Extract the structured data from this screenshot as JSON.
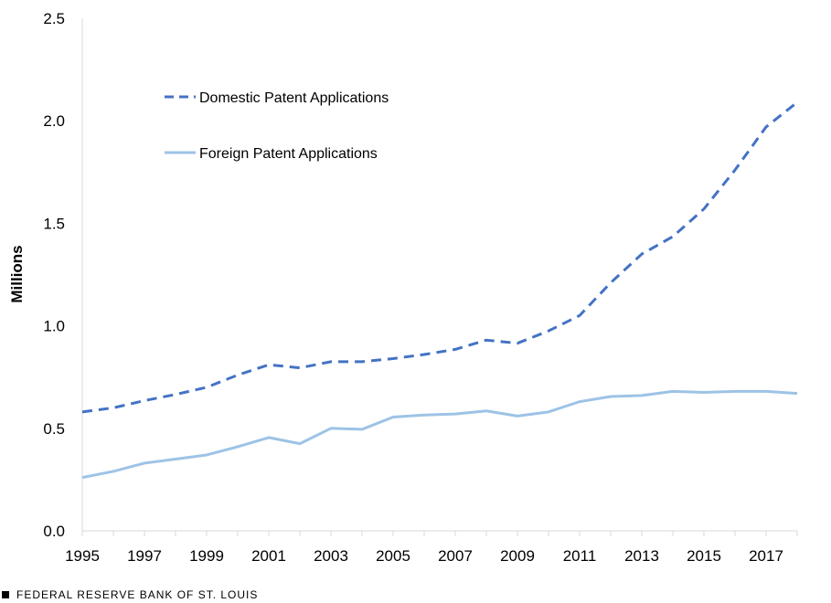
{
  "chart_data": {
    "type": "line",
    "title": "",
    "xlabel": "",
    "ylabel": "Millions",
    "ylim": [
      0,
      2.5
    ],
    "xlim": [
      1995,
      2018
    ],
    "yticks": [
      "0.0",
      "0.5",
      "1.0",
      "1.5",
      "2.0",
      "2.5"
    ],
    "xticks": [
      "1995",
      "1997",
      "1999",
      "2001",
      "2003",
      "2005",
      "2007",
      "2009",
      "2011",
      "2013",
      "2015",
      "2017"
    ],
    "grid": false,
    "legend_position": "top-left",
    "x": [
      1995,
      1996,
      1997,
      1998,
      1999,
      2000,
      2001,
      2002,
      2003,
      2004,
      2005,
      2006,
      2007,
      2008,
      2009,
      2010,
      2011,
      2012,
      2013,
      2014,
      2015,
      2016,
      2017,
      2018
    ],
    "series": [
      {
        "name": "Domestic Patent Applications",
        "style": "dashed",
        "color": "#4472c4",
        "values": [
          0.58,
          0.6,
          0.635,
          0.665,
          0.7,
          0.76,
          0.81,
          0.795,
          0.825,
          0.825,
          0.84,
          0.86,
          0.885,
          0.93,
          0.915,
          0.975,
          1.05,
          1.21,
          1.35,
          1.435,
          1.57,
          1.76,
          1.97,
          2.09
        ]
      },
      {
        "name": "Foreign Patent Applications",
        "style": "solid",
        "color": "#9dc3e6",
        "values": [
          0.26,
          0.29,
          0.33,
          0.35,
          0.37,
          0.41,
          0.455,
          0.425,
          0.5,
          0.495,
          0.555,
          0.565,
          0.57,
          0.585,
          0.56,
          0.58,
          0.63,
          0.655,
          0.66,
          0.68,
          0.675,
          0.68,
          0.68,
          0.67
        ]
      }
    ]
  },
  "footer": {
    "text": "FEDERAL RESERVE BANK OF ST. LOUIS"
  }
}
